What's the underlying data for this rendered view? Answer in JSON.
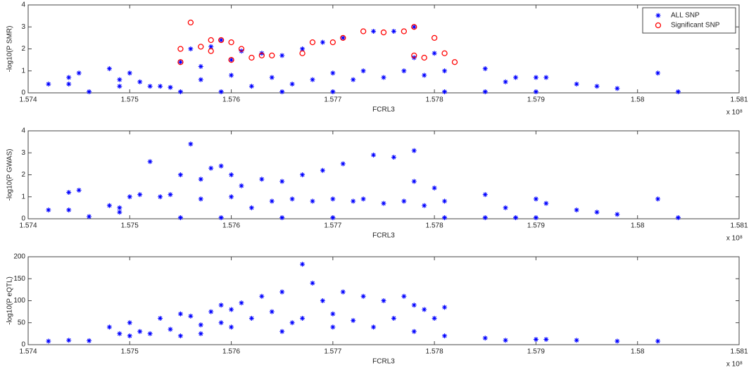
{
  "chart_data": [
    {
      "type": "scatter",
      "x_label": "FCRL3",
      "y_label": "-log10(P SMR)",
      "x_multiplier": "x 10⁸",
      "xlim": [
        1.574,
        1.581
      ],
      "ylim": [
        0,
        4
      ],
      "xticks": [
        1.574,
        1.575,
        1.576,
        1.577,
        1.578,
        1.579,
        1.58,
        1.581
      ],
      "yticks": [
        0,
        1,
        2,
        3,
        4
      ],
      "legend": "upper right",
      "series": [
        {
          "name": "ALL SNP",
          "color": "#0000ff",
          "marker": "star",
          "x": [
            1.5742,
            1.5744,
            1.5745,
            1.5744,
            1.5746,
            1.5748,
            1.5749,
            1.5749,
            1.575,
            1.5751,
            1.5752,
            1.5753,
            1.5754,
            1.5755,
            1.5755,
            1.5756,
            1.5757,
            1.5757,
            1.5758,
            1.5759,
            1.5759,
            1.576,
            1.576,
            1.5761,
            1.5762,
            1.5763,
            1.5764,
            1.5765,
            1.5765,
            1.5766,
            1.5767,
            1.5768,
            1.5769,
            1.577,
            1.577,
            1.5771,
            1.5772,
            1.5773,
            1.5774,
            1.5775,
            1.5776,
            1.5777,
            1.5778,
            1.5778,
            1.5779,
            1.578,
            1.5781,
            1.5781,
            1.5785,
            1.5785,
            1.5787,
            1.5788,
            1.579,
            1.5791,
            1.579,
            1.5794,
            1.5796,
            1.5798,
            1.5802,
            1.5804
          ],
          "values": [
            0.4,
            0.7,
            0.9,
            0.4,
            0.05,
            1.1,
            0.6,
            0.3,
            0.9,
            0.5,
            0.3,
            0.3,
            0.25,
            1.4,
            0.05,
            2.0,
            1.2,
            0.6,
            2.1,
            0.05,
            2.4,
            1.5,
            0.8,
            1.9,
            0.3,
            1.8,
            0.7,
            1.7,
            0.05,
            0.4,
            2.0,
            0.6,
            2.3,
            0.9,
            0.05,
            2.5,
            0.6,
            1.0,
            2.8,
            0.7,
            2.8,
            1.0,
            3.0,
            1.6,
            0.8,
            1.8,
            1.0,
            0.05,
            1.1,
            0.05,
            0.5,
            0.7,
            0.7,
            0.7,
            0.05,
            0.4,
            0.3,
            0.2,
            0.9,
            0.05
          ]
        },
        {
          "name": "Significant SNP",
          "color": "#ff0000",
          "marker": "circle",
          "x": [
            1.5755,
            1.5755,
            1.5756,
            1.5757,
            1.5758,
            1.5758,
            1.5759,
            1.576,
            1.576,
            1.5761,
            1.5762,
            1.5763,
            1.5764,
            1.5767,
            1.5768,
            1.577,
            1.5771,
            1.5773,
            1.5775,
            1.5777,
            1.5778,
            1.5778,
            1.5779,
            1.578,
            1.5781,
            1.5782
          ],
          "values": [
            1.4,
            2.0,
            3.2,
            2.1,
            2.4,
            1.9,
            2.4,
            1.5,
            2.3,
            2.0,
            1.6,
            1.7,
            1.7,
            1.8,
            2.3,
            2.3,
            2.5,
            2.8,
            2.75,
            2.8,
            3.0,
            1.7,
            1.6,
            2.5,
            1.8,
            1.4
          ]
        }
      ]
    },
    {
      "type": "scatter",
      "x_label": "FCRL3",
      "y_label": "-log10(P GWAS)",
      "x_multiplier": "x 10⁸",
      "xlim": [
        1.574,
        1.581
      ],
      "ylim": [
        0,
        4
      ],
      "xticks": [
        1.574,
        1.575,
        1.576,
        1.577,
        1.578,
        1.579,
        1.58,
        1.581
      ],
      "yticks": [
        0,
        1,
        2,
        3,
        4
      ],
      "color": "#0000ff",
      "x": [
        1.5742,
        1.5744,
        1.5745,
        1.5744,
        1.5746,
        1.5748,
        1.5749,
        1.5749,
        1.575,
        1.5751,
        1.5752,
        1.5753,
        1.5754,
        1.5755,
        1.5755,
        1.5756,
        1.5757,
        1.5757,
        1.5758,
        1.5759,
        1.5759,
        1.576,
        1.576,
        1.5761,
        1.5762,
        1.5763,
        1.5764,
        1.5765,
        1.5765,
        1.5766,
        1.5767,
        1.5768,
        1.5769,
        1.577,
        1.577,
        1.5771,
        1.5772,
        1.5773,
        1.5774,
        1.5775,
        1.5776,
        1.5777,
        1.5778,
        1.5778,
        1.5779,
        1.578,
        1.5781,
        1.5781,
        1.5785,
        1.5785,
        1.5787,
        1.5788,
        1.579,
        1.5791,
        1.579,
        1.5794,
        1.5796,
        1.5798,
        1.5802,
        1.5804
      ],
      "values": [
        0.4,
        1.2,
        1.3,
        0.4,
        0.1,
        0.6,
        0.5,
        0.3,
        1.0,
        1.1,
        2.6,
        1.0,
        1.1,
        2.0,
        0.05,
        3.4,
        1.8,
        0.9,
        2.3,
        0.05,
        2.4,
        2.0,
        1.0,
        1.5,
        0.5,
        1.8,
        0.8,
        1.7,
        0.05,
        0.9,
        2.0,
        0.8,
        2.2,
        0.9,
        0.05,
        2.5,
        0.8,
        0.9,
        2.9,
        0.7,
        2.8,
        0.8,
        3.1,
        1.7,
        0.6,
        1.4,
        0.8,
        0.05,
        1.1,
        0.05,
        0.5,
        0.05,
        0.9,
        0.7,
        0.05,
        0.4,
        0.3,
        0.2,
        0.9,
        0.05
      ]
    },
    {
      "type": "scatter",
      "x_label": "FCRL3",
      "y_label": "-log10(P eQTL)",
      "x_multiplier": "x 10⁸",
      "xlim": [
        1.574,
        1.581
      ],
      "ylim": [
        0,
        200
      ],
      "xticks": [
        1.574,
        1.575,
        1.576,
        1.577,
        1.578,
        1.579,
        1.58,
        1.581
      ],
      "yticks": [
        0,
        50,
        100,
        150,
        200
      ],
      "color": "#0000ff",
      "x": [
        1.5742,
        1.5744,
        1.5746,
        1.5748,
        1.5749,
        1.575,
        1.575,
        1.5751,
        1.5752,
        1.5753,
        1.5754,
        1.5755,
        1.5755,
        1.5756,
        1.5757,
        1.5757,
        1.5758,
        1.5759,
        1.5759,
        1.576,
        1.576,
        1.5761,
        1.5762,
        1.5763,
        1.5764,
        1.5765,
        1.5765,
        1.5766,
        1.5767,
        1.5767,
        1.5768,
        1.5769,
        1.577,
        1.577,
        1.5771,
        1.5772,
        1.5773,
        1.5774,
        1.5775,
        1.5776,
        1.5777,
        1.5778,
        1.5778,
        1.5779,
        1.578,
        1.5781,
        1.5781,
        1.5785,
        1.5787,
        1.579,
        1.5791,
        1.5794,
        1.5798,
        1.5802
      ],
      "values": [
        8,
        10,
        9,
        40,
        25,
        50,
        20,
        30,
        25,
        60,
        35,
        70,
        20,
        65,
        45,
        25,
        75,
        50,
        90,
        80,
        40,
        95,
        60,
        110,
        75,
        120,
        30,
        50,
        183,
        60,
        140,
        100,
        40,
        70,
        120,
        55,
        110,
        40,
        100,
        60,
        110,
        90,
        30,
        80,
        60,
        85,
        20,
        15,
        10,
        12,
        12,
        10,
        8,
        8
      ]
    }
  ]
}
